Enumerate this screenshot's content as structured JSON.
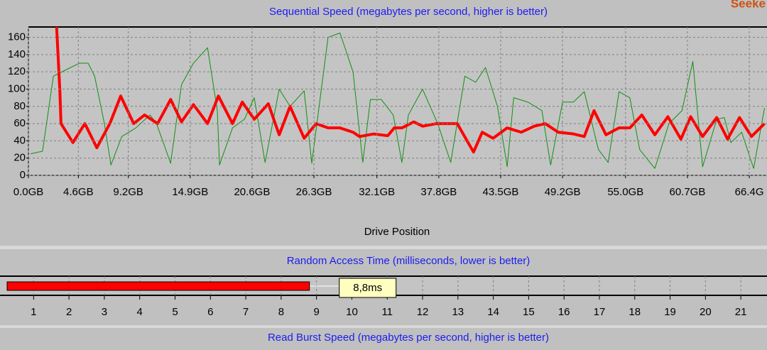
{
  "corner_label": "Seeke",
  "chart_data": [
    {
      "type": "line",
      "title": "Sequential Speed (megabytes per second, higher is better)",
      "x_label": "Drive Position",
      "xlim": [
        0,
        67.9
      ],
      "xticks": [
        {
          "value": 0,
          "label": "0.0GB"
        },
        {
          "value": 4.6,
          "label": "4.6GB"
        },
        {
          "value": 9.2,
          "label": "9.2GB"
        },
        {
          "value": 14.9,
          "label": "14.9GB"
        },
        {
          "value": 20.6,
          "label": "20.6GB"
        },
        {
          "value": 26.3,
          "label": "26.3GB"
        },
        {
          "value": 32.1,
          "label": "32.1GB"
        },
        {
          "value": 37.8,
          "label": "37.8GB"
        },
        {
          "value": 43.5,
          "label": "43.5GB"
        },
        {
          "value": 49.2,
          "label": "49.2GB"
        },
        {
          "value": 55.0,
          "label": "55.0GB"
        },
        {
          "value": 60.7,
          "label": "60.7GB"
        },
        {
          "value": 66.4,
          "label": "66.4G"
        }
      ],
      "ylim": [
        0,
        172
      ],
      "yticks": [
        0,
        20,
        40,
        60,
        80,
        100,
        120,
        140,
        160
      ],
      "grid": true,
      "series": [
        {
          "color": "#109010",
          "width": 1,
          "x": [
            0.2,
            1.3,
            2.3,
            3.4,
            4.7,
            5.5,
            6.1,
            7.0,
            7.6,
            8.6,
            9.9,
            11.2,
            11.8,
            13.1,
            14.1,
            15.2,
            16.5,
            17.4,
            17.6,
            18.8,
            19.9,
            20.8,
            21.8,
            23.1,
            24.1,
            25.4,
            26.1,
            27.6,
            28.7,
            29.9,
            30.8,
            31.5,
            32.5,
            33.6,
            34.4,
            35.0,
            36.3,
            37.7,
            38.9,
            40.2,
            41.2,
            42.1,
            43.2,
            44.1,
            44.7,
            46.0,
            47.3,
            48.1,
            49.2,
            50.2,
            51.2,
            52.5,
            53.4,
            54.4,
            55.4,
            56.3,
            57.7,
            59.0,
            60.2,
            61.2,
            62.1,
            63.4,
            64.1,
            64.7,
            65.7,
            66.8,
            67.8
          ],
          "values": [
            25,
            28,
            115,
            122,
            130,
            130,
            115,
            60,
            12,
            45,
            55,
            70,
            60,
            14,
            105,
            130,
            148,
            75,
            12,
            55,
            65,
            90,
            15,
            100,
            80,
            98,
            14,
            160,
            165,
            120,
            15,
            88,
            88,
            70,
            15,
            70,
            100,
            60,
            15,
            115,
            108,
            125,
            80,
            10,
            90,
            85,
            75,
            12,
            85,
            85,
            97,
            30,
            15,
            97,
            90,
            30,
            8,
            60,
            75,
            132,
            10,
            65,
            67,
            38,
            50,
            8,
            78
          ]
        },
        {
          "color": "#ff0000",
          "width": 4,
          "x": [
            2.6,
            2.9,
            3.0,
            4.1,
            5.2,
            6.3,
            7.5,
            8.5,
            9.7,
            10.7,
            11.9,
            13.1,
            14.1,
            15.2,
            16.5,
            17.5,
            18.8,
            19.7,
            20.8,
            22.1,
            23.1,
            24.1,
            25.4,
            26.5,
            27.6,
            28.7,
            29.9,
            30.5,
            31.8,
            33.1,
            33.7,
            34.4,
            35.5,
            36.3,
            37.6,
            39.5,
            41.0,
            41.8,
            42.8,
            44.1,
            45.4,
            46.6,
            47.6,
            48.8,
            50.2,
            51.2,
            52.1,
            53.2,
            54.4,
            55.4,
            56.5,
            57.7,
            58.9,
            60.1,
            61.0,
            62.1,
            63.4,
            64.4,
            65.5,
            66.6,
            67.8
          ],
          "values": [
            172,
            97,
            60,
            38,
            60,
            32,
            60,
            92,
            60,
            70,
            60,
            88,
            62,
            82,
            60,
            92,
            60,
            85,
            65,
            83,
            47,
            80,
            43,
            60,
            55,
            55,
            50,
            45,
            48,
            46,
            55,
            55,
            62,
            57,
            60,
            60,
            27,
            50,
            43,
            55,
            50,
            57,
            60,
            50,
            48,
            45,
            75,
            47,
            55,
            55,
            70,
            47,
            68,
            42,
            68,
            45,
            67,
            42,
            67,
            45,
            60
          ]
        }
      ]
    },
    {
      "type": "bar",
      "title": "Random Access Time (milliseconds, lower is better)",
      "xlim": [
        0.25,
        21.7
      ],
      "xticks": [
        1,
        2,
        3,
        4,
        5,
        6,
        7,
        8,
        9,
        10,
        11,
        12,
        13,
        14,
        15,
        16,
        17,
        18,
        19,
        20,
        21
      ],
      "values": [
        8.8
      ],
      "value_labels": [
        "8,8ms"
      ],
      "color": "#ff0000",
      "grid": true
    },
    {
      "type": "bar",
      "title": "Read Burst Speed (megabytes per second, higher is better)"
    }
  ]
}
